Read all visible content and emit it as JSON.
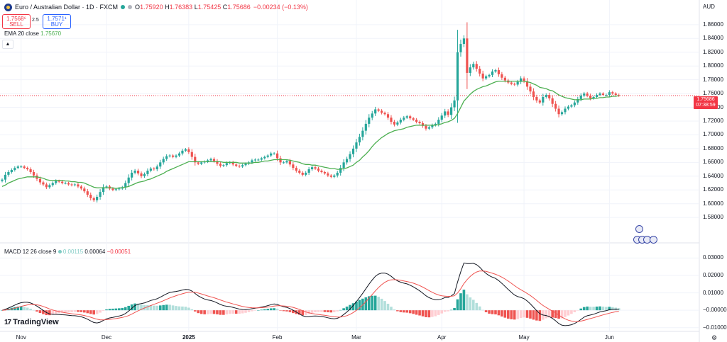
{
  "header": {
    "symbol_title": "Euro / Australian Dollar · 1D · FXCM",
    "open_label": "O",
    "open_value": "1.75920",
    "high_label": "H",
    "high_value": "1.76383",
    "low_label": "L",
    "low_value": "1.75425",
    "close_label": "C",
    "close_value": "1.75686",
    "change": "−0.00234 (−0.13%)"
  },
  "trade": {
    "sell_price": "1.7568⁶",
    "sell_label": "SELL",
    "spread": "2.5",
    "buy_price": "1.7571¹",
    "buy_label": "BUY"
  },
  "ema_legend": {
    "label": "EMA 20 close",
    "value": "1.75670"
  },
  "macd_legend": {
    "label": "MACD 12 26 close 9",
    "hist": "0.00115",
    "macd": "0.00064",
    "signal": "−0.00051"
  },
  "currency": "AUD",
  "price_tag": {
    "price": "1.75686",
    "countdown": "07:38:59"
  },
  "branding": {
    "logo_text": "TradingView"
  },
  "colors": {
    "up": "#26a69a",
    "down": "#ef5350",
    "ema": "#4caf50",
    "macd": "#131722",
    "signal": "#ef5350",
    "hist_up_strong": "#26a69a",
    "hist_up_weak": "#b2dfdb",
    "hist_down_strong": "#ef5350",
    "hist_down_weak": "#ffcdd2"
  },
  "chart_data": [
    {
      "type": "candlestick",
      "title": "Euro / Australian Dollar · 1D · FXCM",
      "y_axis_ticks": [
        "1.86000",
        "1.84000",
        "1.82000",
        "1.80000",
        "1.78000",
        "1.76000",
        "1.74000",
        "1.72000",
        "1.70000",
        "1.68000",
        "1.66000",
        "1.64000",
        "1.62000",
        "1.60000",
        "1.58000"
      ],
      "x_axis_ticks": [
        "Nov",
        "Dec",
        "2025",
        "Feb",
        "Mar",
        "Apr",
        "May",
        "Jun"
      ],
      "ylim": [
        1.575,
        1.865
      ],
      "grid": true,
      "close": [
        1.635,
        1.642,
        1.646,
        1.649,
        1.652,
        1.654,
        1.654,
        1.652,
        1.65,
        1.646,
        1.641,
        1.636,
        1.631,
        1.628,
        1.624,
        1.627,
        1.63,
        1.633,
        1.632,
        1.63,
        1.63,
        1.628,
        1.627,
        1.628,
        1.625,
        1.622,
        1.618,
        1.613,
        1.608,
        1.605,
        1.61,
        1.617,
        1.624,
        1.625,
        1.622,
        1.62,
        1.621,
        1.622,
        1.624,
        1.63,
        1.638,
        1.645,
        1.648,
        1.644,
        1.64,
        1.643,
        1.648,
        1.651,
        1.65,
        1.654,
        1.66,
        1.665,
        1.669,
        1.67,
        1.668,
        1.67,
        1.673,
        1.677,
        1.679,
        1.675,
        1.668,
        1.66,
        1.658,
        1.66,
        1.661,
        1.663,
        1.665,
        1.662,
        1.658,
        1.655,
        1.656,
        1.659,
        1.66,
        1.657,
        1.655,
        1.654,
        1.656,
        1.658,
        1.66,
        1.663,
        1.664,
        1.664,
        1.666,
        1.668,
        1.67,
        1.673,
        1.673,
        1.666,
        1.66,
        1.66,
        1.662,
        1.657,
        1.652,
        1.648,
        1.645,
        1.642,
        1.645,
        1.65,
        1.653,
        1.651,
        1.648,
        1.646,
        1.644,
        1.641,
        1.639,
        1.641,
        1.645,
        1.652,
        1.66,
        1.665,
        1.672,
        1.68,
        1.689,
        1.697,
        1.706,
        1.716,
        1.725,
        1.731,
        1.737,
        1.735,
        1.732,
        1.73,
        1.725,
        1.719,
        1.715,
        1.718,
        1.722,
        1.725,
        1.727,
        1.724,
        1.722,
        1.719,
        1.717,
        1.713,
        1.709,
        1.711,
        1.714,
        1.716,
        1.722,
        1.728,
        1.734,
        1.729,
        1.74,
        1.75,
        1.82,
        1.832,
        1.84,
        1.79,
        1.798,
        1.803,
        1.796,
        1.789,
        1.782,
        1.785,
        1.787,
        1.792,
        1.794,
        1.788,
        1.783,
        1.779,
        1.776,
        1.774,
        1.773,
        1.777,
        1.782,
        1.778,
        1.77,
        1.763,
        1.755,
        1.75,
        1.747,
        1.755,
        1.758,
        1.753,
        1.745,
        1.738,
        1.73,
        1.733,
        1.738,
        1.741,
        1.743,
        1.747,
        1.752,
        1.757,
        1.76,
        1.757,
        1.753,
        1.755,
        1.758,
        1.76,
        1.758,
        1.758,
        1.762,
        1.76,
        1.758,
        1.757
      ],
      "ema20_close": [
        1.625,
        1.627,
        1.63,
        1.632,
        1.634,
        1.636,
        1.637,
        1.638,
        1.639,
        1.639,
        1.639,
        1.639,
        1.638,
        1.637,
        1.635,
        1.634,
        1.634,
        1.634,
        1.634,
        1.634,
        1.633,
        1.633,
        1.632,
        1.632,
        1.631,
        1.631,
        1.63,
        1.628,
        1.626,
        1.624,
        1.623,
        1.623,
        1.623,
        1.623,
        1.623,
        1.623,
        1.622,
        1.623,
        1.623,
        1.624,
        1.625,
        1.627,
        1.629,
        1.631,
        1.632,
        1.633,
        1.635,
        1.636,
        1.638,
        1.64,
        1.642,
        1.644,
        1.647,
        1.649,
        1.651,
        1.653,
        1.655,
        1.657,
        1.659,
        1.661,
        1.661,
        1.661,
        1.661,
        1.661,
        1.661,
        1.661,
        1.661,
        1.661,
        1.661,
        1.661,
        1.66,
        1.66,
        1.66,
        1.66,
        1.66,
        1.659,
        1.659,
        1.659,
        1.659,
        1.659,
        1.66,
        1.66,
        1.661,
        1.662,
        1.662,
        1.663,
        1.664,
        1.664,
        1.664,
        1.664,
        1.664,
        1.663,
        1.662,
        1.661,
        1.66,
        1.658,
        1.657,
        1.657,
        1.656,
        1.656,
        1.655,
        1.654,
        1.653,
        1.652,
        1.651,
        1.651,
        1.65,
        1.65,
        1.651,
        1.652,
        1.654,
        1.656,
        1.66,
        1.663,
        1.668,
        1.672,
        1.677,
        1.683,
        1.688,
        1.692,
        1.696,
        1.699,
        1.702,
        1.704,
        1.706,
        1.707,
        1.708,
        1.709,
        1.711,
        1.712,
        1.713,
        1.714,
        1.714,
        1.714,
        1.714,
        1.714,
        1.714,
        1.714,
        1.715,
        1.716,
        1.718,
        1.719,
        1.721,
        1.724,
        1.731,
        1.74,
        1.749,
        1.754,
        1.759,
        1.763,
        1.766,
        1.768,
        1.77,
        1.771,
        1.773,
        1.775,
        1.777,
        1.778,
        1.778,
        1.778,
        1.778,
        1.778,
        1.778,
        1.778,
        1.778,
        1.778,
        1.777,
        1.776,
        1.774,
        1.772,
        1.769,
        1.768,
        1.767,
        1.765,
        1.764,
        1.761,
        1.758,
        1.756,
        1.754,
        1.753,
        1.752,
        1.751,
        1.751,
        1.751,
        1.752,
        1.752,
        1.752,
        1.753,
        1.753,
        1.754,
        1.754,
        1.755,
        1.755,
        1.756,
        1.756,
        1.757
      ]
    },
    {
      "type": "macd",
      "title": "MACD 12 26 close 9",
      "y_axis_ticks": [
        "0.03000",
        "0.02000",
        "0.01000",
        "−0.00000",
        "−0.01000"
      ],
      "ylim": [
        -0.0105,
        0.033
      ],
      "legend": [
        "0.00115",
        "0.00064",
        "−0.00051"
      ]
    }
  ]
}
